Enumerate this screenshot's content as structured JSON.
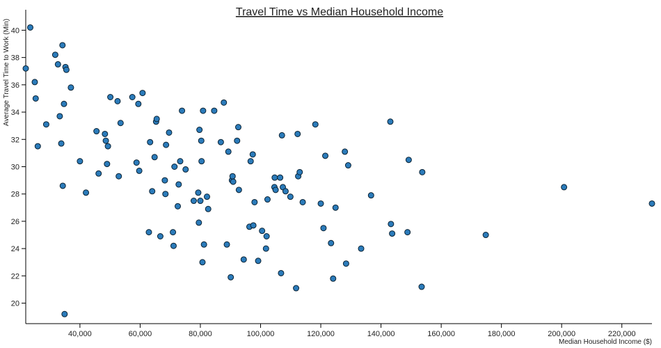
{
  "chart_data": {
    "type": "scatter",
    "title": "Travel Time vs Median Household Income",
    "xlabel": "Median Household Income ($)",
    "ylabel": "Average Travel Time to Work (Min)",
    "xlim": [
      22000,
      230000
    ],
    "ylim": [
      18.5,
      41.5
    ],
    "x_ticks": [
      40000,
      60000,
      80000,
      100000,
      120000,
      140000,
      160000,
      180000,
      200000,
      220000
    ],
    "x_tick_labels": [
      "40,000",
      "60,000",
      "80,000",
      "100,000",
      "120,000",
      "140,000",
      "160,000",
      "180,000",
      "200,000",
      "220,000"
    ],
    "y_ticks": [
      20,
      22,
      24,
      26,
      28,
      30,
      32,
      34,
      36,
      38,
      40
    ],
    "y_tick_labels": [
      "20",
      "22",
      "24",
      "26",
      "28",
      "30",
      "32",
      "34",
      "36",
      "38",
      "40"
    ],
    "grid": false,
    "marker_color": "#2b7bba",
    "points": [
      {
        "x": 22000,
        "y": 37.2
      },
      {
        "x": 23500,
        "y": 40.2
      },
      {
        "x": 25000,
        "y": 36.2
      },
      {
        "x": 25300,
        "y": 35.0
      },
      {
        "x": 26000,
        "y": 31.5
      },
      {
        "x": 28800,
        "y": 33.1
      },
      {
        "x": 31800,
        "y": 38.2
      },
      {
        "x": 32700,
        "y": 37.5
      },
      {
        "x": 33300,
        "y": 33.7
      },
      {
        "x": 33800,
        "y": 31.7
      },
      {
        "x": 34200,
        "y": 38.9
      },
      {
        "x": 34300,
        "y": 28.6
      },
      {
        "x": 34700,
        "y": 34.6
      },
      {
        "x": 34900,
        "y": 19.2
      },
      {
        "x": 35200,
        "y": 37.3
      },
      {
        "x": 35500,
        "y": 37.1
      },
      {
        "x": 37000,
        "y": 35.8
      },
      {
        "x": 40000,
        "y": 30.4
      },
      {
        "x": 42000,
        "y": 28.1
      },
      {
        "x": 45500,
        "y": 32.6
      },
      {
        "x": 46200,
        "y": 29.5
      },
      {
        "x": 48300,
        "y": 32.4
      },
      {
        "x": 48600,
        "y": 31.9
      },
      {
        "x": 49000,
        "y": 30.2
      },
      {
        "x": 49300,
        "y": 31.5
      },
      {
        "x": 50100,
        "y": 35.1
      },
      {
        "x": 52500,
        "y": 34.8
      },
      {
        "x": 52900,
        "y": 29.3
      },
      {
        "x": 53500,
        "y": 33.2
      },
      {
        "x": 57400,
        "y": 35.1
      },
      {
        "x": 58800,
        "y": 30.3
      },
      {
        "x": 59400,
        "y": 34.6
      },
      {
        "x": 59700,
        "y": 29.7
      },
      {
        "x": 60800,
        "y": 35.4
      },
      {
        "x": 62900,
        "y": 25.2
      },
      {
        "x": 63300,
        "y": 31.8
      },
      {
        "x": 64000,
        "y": 28.2
      },
      {
        "x": 64800,
        "y": 30.7
      },
      {
        "x": 65300,
        "y": 33.3
      },
      {
        "x": 65500,
        "y": 33.5
      },
      {
        "x": 66700,
        "y": 24.9
      },
      {
        "x": 68200,
        "y": 29.0
      },
      {
        "x": 68400,
        "y": 28.0
      },
      {
        "x": 68600,
        "y": 31.6
      },
      {
        "x": 69600,
        "y": 32.5
      },
      {
        "x": 70900,
        "y": 25.2
      },
      {
        "x": 71100,
        "y": 24.2
      },
      {
        "x": 71400,
        "y": 30.0
      },
      {
        "x": 72500,
        "y": 27.1
      },
      {
        "x": 72800,
        "y": 28.7
      },
      {
        "x": 73300,
        "y": 30.4
      },
      {
        "x": 73900,
        "y": 34.1
      },
      {
        "x": 75100,
        "y": 29.8
      },
      {
        "x": 77800,
        "y": 27.5
      },
      {
        "x": 79300,
        "y": 28.1
      },
      {
        "x": 79500,
        "y": 25.9
      },
      {
        "x": 79700,
        "y": 32.7
      },
      {
        "x": 80000,
        "y": 27.5
      },
      {
        "x": 80300,
        "y": 31.9
      },
      {
        "x": 80400,
        "y": 30.4
      },
      {
        "x": 80700,
        "y": 23.0
      },
      {
        "x": 80900,
        "y": 34.1
      },
      {
        "x": 81200,
        "y": 24.3
      },
      {
        "x": 82200,
        "y": 27.8
      },
      {
        "x": 82600,
        "y": 26.9
      },
      {
        "x": 84600,
        "y": 34.1
      },
      {
        "x": 86800,
        "y": 31.8
      },
      {
        "x": 87800,
        "y": 34.7
      },
      {
        "x": 88800,
        "y": 24.3
      },
      {
        "x": 89300,
        "y": 31.1
      },
      {
        "x": 90100,
        "y": 21.9
      },
      {
        "x": 90500,
        "y": 29.0
      },
      {
        "x": 90700,
        "y": 29.3
      },
      {
        "x": 90900,
        "y": 28.9
      },
      {
        "x": 92200,
        "y": 31.9
      },
      {
        "x": 92600,
        "y": 32.9
      },
      {
        "x": 92800,
        "y": 28.3
      },
      {
        "x": 94400,
        "y": 23.2
      },
      {
        "x": 96300,
        "y": 25.6
      },
      {
        "x": 96700,
        "y": 30.4
      },
      {
        "x": 97400,
        "y": 30.9
      },
      {
        "x": 97600,
        "y": 25.7
      },
      {
        "x": 98000,
        "y": 27.4
      },
      {
        "x": 99200,
        "y": 23.1
      },
      {
        "x": 100500,
        "y": 25.3
      },
      {
        "x": 101800,
        "y": 24.0
      },
      {
        "x": 102000,
        "y": 24.9
      },
      {
        "x": 102300,
        "y": 27.6
      },
      {
        "x": 104600,
        "y": 28.5
      },
      {
        "x": 104700,
        "y": 29.2
      },
      {
        "x": 105000,
        "y": 28.3
      },
      {
        "x": 106500,
        "y": 29.2
      },
      {
        "x": 106800,
        "y": 22.2
      },
      {
        "x": 107100,
        "y": 32.3
      },
      {
        "x": 107400,
        "y": 28.5
      },
      {
        "x": 108300,
        "y": 28.2
      },
      {
        "x": 109900,
        "y": 27.8
      },
      {
        "x": 111800,
        "y": 21.1
      },
      {
        "x": 112300,
        "y": 32.4
      },
      {
        "x": 112500,
        "y": 29.3
      },
      {
        "x": 113000,
        "y": 29.6
      },
      {
        "x": 114000,
        "y": 27.4
      },
      {
        "x": 118200,
        "y": 33.1
      },
      {
        "x": 120000,
        "y": 27.3
      },
      {
        "x": 120900,
        "y": 25.5
      },
      {
        "x": 121500,
        "y": 30.8
      },
      {
        "x": 123400,
        "y": 24.4
      },
      {
        "x": 124100,
        "y": 21.8
      },
      {
        "x": 124900,
        "y": 27.0
      },
      {
        "x": 128000,
        "y": 31.1
      },
      {
        "x": 128400,
        "y": 22.9
      },
      {
        "x": 129100,
        "y": 30.1
      },
      {
        "x": 133400,
        "y": 24.0
      },
      {
        "x": 136700,
        "y": 27.9
      },
      {
        "x": 143100,
        "y": 33.3
      },
      {
        "x": 143300,
        "y": 25.8
      },
      {
        "x": 143700,
        "y": 25.1
      },
      {
        "x": 148800,
        "y": 25.2
      },
      {
        "x": 149200,
        "y": 30.5
      },
      {
        "x": 153500,
        "y": 21.2
      },
      {
        "x": 153700,
        "y": 29.6
      },
      {
        "x": 174800,
        "y": 25.0
      },
      {
        "x": 200800,
        "y": 28.5
      },
      {
        "x": 230000,
        "y": 27.3
      }
    ]
  }
}
